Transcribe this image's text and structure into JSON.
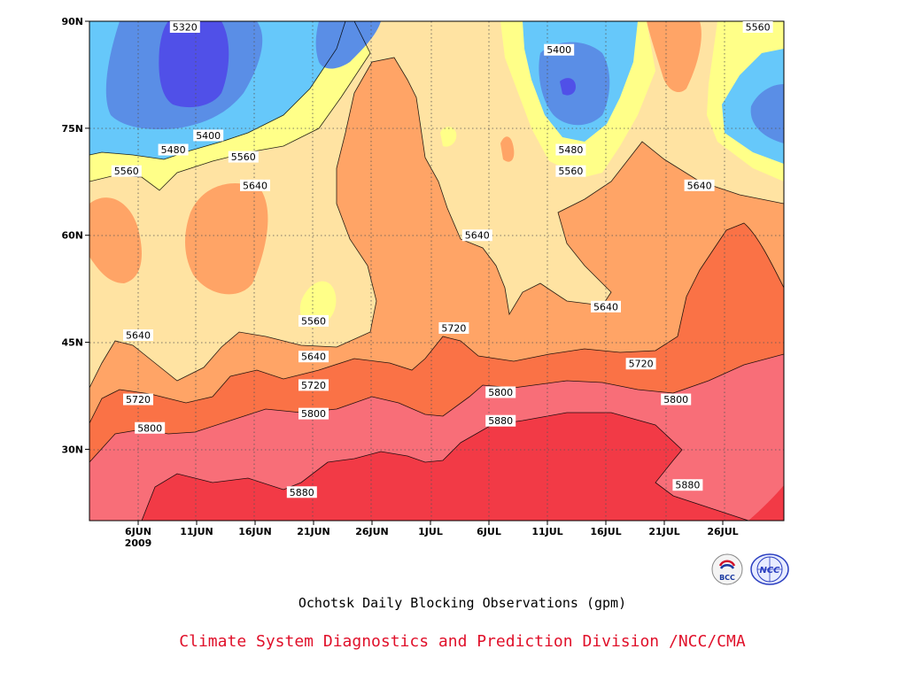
{
  "chart_data": {
    "type": "heatmap",
    "title": "Ochotsk Daily Blocking Observations (gpm)",
    "credit": "Climate System Diagnostics and Prediction Division /NCC/CMA",
    "units": "gpm",
    "x_tick_labels": [
      "6JUN",
      "11JUN",
      "16JUN",
      "21JUN",
      "26JUN",
      "1JUL",
      "6JUL",
      "11JUL",
      "16JUL",
      "21JUL",
      "26JUL"
    ],
    "x_year_label": "2009",
    "y_tick_labels": [
      "30N",
      "45N",
      "60N",
      "75N",
      "90N"
    ],
    "y_tick_values": [
      30,
      45,
      60,
      75,
      90
    ],
    "ylim": [
      20,
      90
    ],
    "levels": [
      5320,
      5400,
      5480,
      5560,
      5640,
      5720,
      5800,
      5880
    ],
    "level_colors": [
      "#5050e8",
      "#5a8ee6",
      "#66c8fa",
      "#ffff88",
      "#ffe3a2",
      "#ffa466",
      "#fa7246",
      "#f86e78",
      "#f23a46"
    ],
    "contour_labels": [
      {
        "text": "5320",
        "date": "10JUN",
        "lat": 90
      },
      {
        "text": "5400",
        "date": "12JUN",
        "lat": 74
      },
      {
        "text": "5480",
        "date": "9JUN",
        "lat": 72
      },
      {
        "text": "5560",
        "date": "5JUN",
        "lat": 69
      },
      {
        "text": "5560",
        "date": "15JUN",
        "lat": 71
      },
      {
        "text": "5640",
        "date": "16JUN",
        "lat": 67
      },
      {
        "text": "5400",
        "date": "12JUL",
        "lat": 86
      },
      {
        "text": "5480",
        "date": "13JUL",
        "lat": 72
      },
      {
        "text": "5560",
        "date": "13JUL",
        "lat": 69
      },
      {
        "text": "5560",
        "date": "29JUL",
        "lat": 90
      },
      {
        "text": "5640",
        "date": "24JUL",
        "lat": 67
      },
      {
        "text": "5640",
        "date": "5JUL",
        "lat": 60
      },
      {
        "text": "5640",
        "date": "16JUL",
        "lat": 50
      },
      {
        "text": "5640",
        "date": "6JUN",
        "lat": 46
      },
      {
        "text": "5560",
        "date": "21JUN",
        "lat": 48
      },
      {
        "text": "5640",
        "date": "21JUN",
        "lat": 43
      },
      {
        "text": "5720",
        "date": "21JUN",
        "lat": 39
      },
      {
        "text": "5720",
        "date": "3JUL",
        "lat": 47
      },
      {
        "text": "5720",
        "date": "19JUL",
        "lat": 42
      },
      {
        "text": "5720",
        "date": "6JUN",
        "lat": 37
      },
      {
        "text": "5800",
        "date": "7JUN",
        "lat": 33
      },
      {
        "text": "5800",
        "date": "21JUN",
        "lat": 35
      },
      {
        "text": "5800",
        "date": "7JUL",
        "lat": 38
      },
      {
        "text": "5800",
        "date": "22JUL",
        "lat": 37
      },
      {
        "text": "5880",
        "date": "7JUL",
        "lat": 34
      },
      {
        "text": "5880",
        "date": "20JUN",
        "lat": 24
      },
      {
        "text": "5880",
        "date": "23JUL",
        "lat": 25
      }
    ]
  },
  "logos": {
    "left": {
      "icon": "bcc-logo",
      "text": "BCC"
    },
    "right": {
      "icon": "ncc-logo",
      "text": "NCC"
    }
  }
}
